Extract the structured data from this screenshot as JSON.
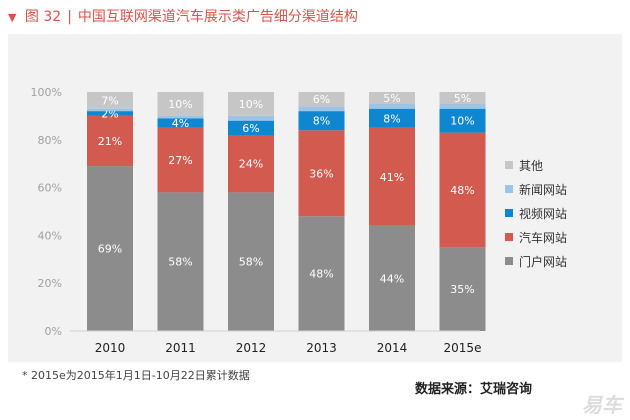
{
  "figure": {
    "marker": "▼",
    "label": "图 32",
    "title": "中国互联网渠道汽车展示类广告细分渠道结构"
  },
  "footnote": "* 2015e为2015年1月1日-10月22日累计数据",
  "source": "数据来源：艾瑞咨询",
  "watermark": "易车",
  "colors": {
    "panel_bg": "#f2f2f2",
    "title": "#d9534a"
  },
  "chart_data": {
    "type": "bar",
    "stacked": true,
    "normalized": true,
    "title": "中国互联网渠道汽车展示类广告细分渠道结构",
    "xlabel": "",
    "ylabel": "",
    "ylim": [
      0,
      100
    ],
    "yticks": [
      "0%",
      "20%",
      "40%",
      "60%",
      "80%",
      "100%"
    ],
    "grid": false,
    "legend_position": "right",
    "categories": [
      "2010",
      "2011",
      "2012",
      "2013",
      "2014",
      "2015e"
    ],
    "series": [
      {
        "name": "门户网站",
        "color": "#8c8c8c",
        "values": [
          69,
          58,
          58,
          48,
          44,
          35
        ],
        "labels": [
          "69%",
          "58%",
          "58%",
          "48%",
          "44%",
          "35%"
        ]
      },
      {
        "name": "汽车网站",
        "color": "#d35a4e",
        "values": [
          21,
          27,
          24,
          36,
          41,
          48
        ],
        "labels": [
          "21%",
          "27%",
          "24%",
          "36%",
          "41%",
          "48%"
        ]
      },
      {
        "name": "视频网站",
        "color": "#0f86d0",
        "values": [
          2,
          4,
          6,
          8,
          8,
          10
        ],
        "labels": [
          "2%",
          "4%",
          "6%",
          "8%",
          "8%",
          "10%"
        ]
      },
      {
        "name": "新闻网站",
        "color": "#9dc3e6",
        "values": [
          1,
          1,
          2,
          2,
          2,
          2
        ],
        "labels": [
          "",
          "",
          "",
          "",
          "",
          ""
        ]
      },
      {
        "name": "其他",
        "color": "#c6c6c6",
        "values": [
          7,
          10,
          10,
          6,
          5,
          5
        ],
        "labels": [
          "7%",
          "10%",
          "10%",
          "6%",
          "5%",
          "5%"
        ]
      }
    ],
    "legend_order": [
      "其他",
      "新闻网站",
      "视频网站",
      "汽车网站",
      "门户网站"
    ]
  }
}
